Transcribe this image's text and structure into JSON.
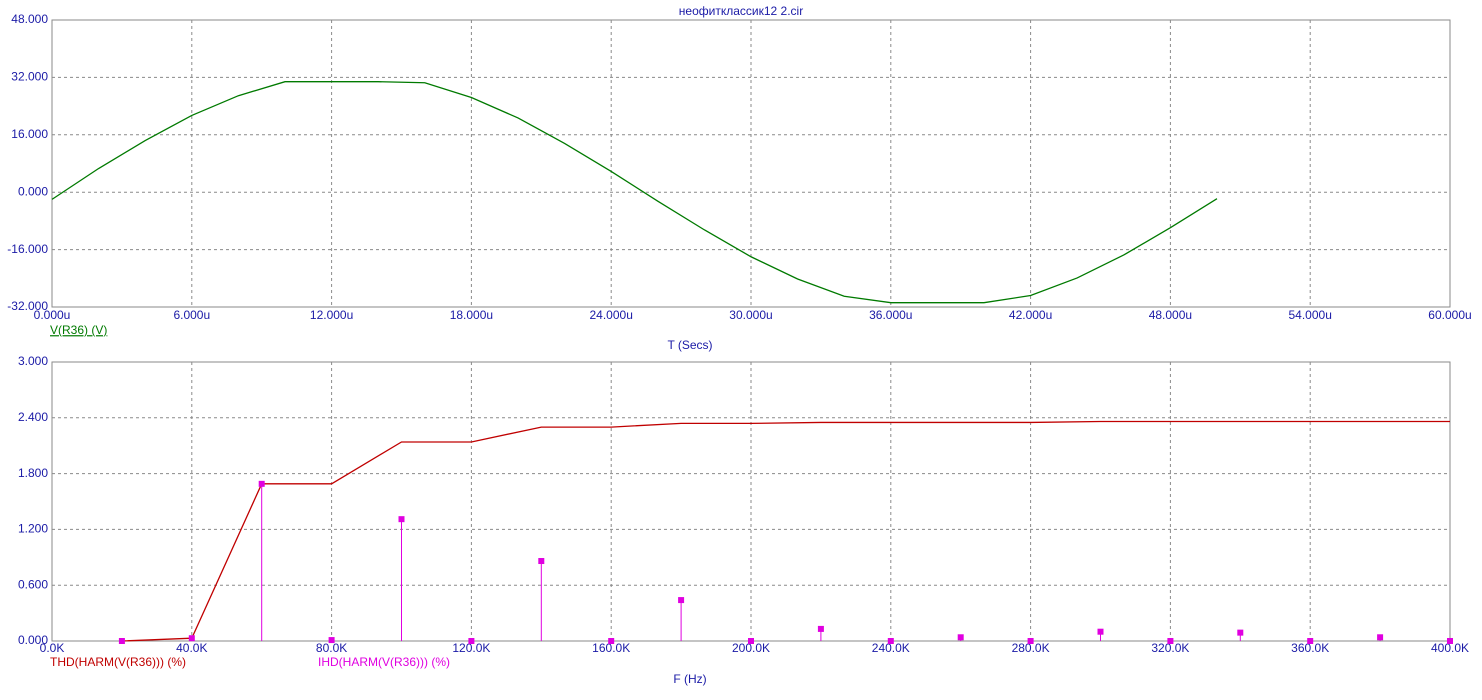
{
  "chart_data": [
    {
      "type": "line",
      "title": "неофитклассик12  2.cir",
      "x_label": "T (Secs)",
      "x": [
        0,
        2e-06,
        4e-06,
        6e-06,
        8e-06,
        1e-05,
        1.2e-05,
        1.4e-05,
        1.6e-05,
        1.8e-05,
        2e-05,
        2.2e-05,
        2.4e-05,
        2.6e-05,
        2.8e-05,
        3e-05,
        3.2e-05,
        3.4e-05,
        3.6e-05,
        3.8e-05,
        4e-05,
        4.2e-05,
        4.4e-05,
        4.6e-05,
        4.8e-05,
        5e-05
      ],
      "series": [
        {
          "name": "V(R36) (V)",
          "color": "#007a00",
          "style": "line",
          "values": [
            -2.0,
            6.6,
            14.4,
            21.4,
            26.9,
            30.8,
            30.8,
            30.8,
            30.5,
            26.4,
            20.7,
            13.6,
            5.8,
            -2.5,
            -10.5,
            -18.0,
            -24.2,
            -29.0,
            -30.8,
            -30.8,
            -30.8,
            -28.8,
            -23.9,
            -17.5,
            -9.9,
            -1.8
          ]
        }
      ],
      "xlim": [
        0,
        6e-05
      ],
      "xticks": [
        {
          "value": 0,
          "label": "0.000u"
        },
        {
          "value": 6e-06,
          "label": "6.000u"
        },
        {
          "value": 1.2e-05,
          "label": "12.000u"
        },
        {
          "value": 1.8e-05,
          "label": "18.000u"
        },
        {
          "value": 2.4e-05,
          "label": "24.000u"
        },
        {
          "value": 3e-05,
          "label": "30.000u"
        },
        {
          "value": 3.6e-05,
          "label": "36.000u"
        },
        {
          "value": 4.2e-05,
          "label": "42.000u"
        },
        {
          "value": 4.8e-05,
          "label": "48.000u"
        },
        {
          "value": 5.4e-05,
          "label": "54.000u"
        },
        {
          "value": 6e-05,
          "label": "60.000u"
        }
      ],
      "ylim": [
        -32,
        48
      ],
      "yticks": [
        {
          "value": -32,
          "label": "-32.000"
        },
        {
          "value": -16,
          "label": "-16.000"
        },
        {
          "value": 0,
          "label": "0.000"
        },
        {
          "value": 16,
          "label": "16.000"
        },
        {
          "value": 32,
          "label": "32.000"
        },
        {
          "value": 48,
          "label": "48.000"
        }
      ],
      "grid": true
    },
    {
      "type": "line",
      "x_label": "F (Hz)",
      "x": [
        20000,
        40000,
        60000,
        80000,
        100000,
        120000,
        140000,
        160000,
        180000,
        200000,
        220000,
        240000,
        260000,
        280000,
        300000,
        320000,
        340000,
        360000,
        380000,
        400000
      ],
      "series": [
        {
          "name": "THD(HARM(V(R36))) (%)",
          "color": "#c00000",
          "style": "line",
          "values": [
            0,
            0.03,
            1.69,
            1.69,
            2.14,
            2.14,
            2.3,
            2.3,
            2.34,
            2.34,
            2.35,
            2.35,
            2.35,
            2.35,
            2.36,
            2.36,
            2.36,
            2.36,
            2.36,
            2.36
          ]
        },
        {
          "name": "IHD(HARM(V(R36))) (%)",
          "color": "#e000e0",
          "style": "stem",
          "values": [
            0,
            0.03,
            1.69,
            0.01,
            1.31,
            0,
            0.86,
            0,
            0.44,
            0,
            0.13,
            0,
            0.04,
            0,
            0.1,
            0,
            0.09,
            0,
            0.04,
            0
          ]
        }
      ],
      "xlim": [
        0,
        400000
      ],
      "xticks": [
        {
          "value": 0,
          "label": "0.0K"
        },
        {
          "value": 40000,
          "label": "40.0K"
        },
        {
          "value": 80000,
          "label": "80.0K"
        },
        {
          "value": 120000,
          "label": "120.0K"
        },
        {
          "value": 160000,
          "label": "160.0K"
        },
        {
          "value": 200000,
          "label": "200.0K"
        },
        {
          "value": 240000,
          "label": "240.0K"
        },
        {
          "value": 280000,
          "label": "280.0K"
        },
        {
          "value": 320000,
          "label": "320.0K"
        },
        {
          "value": 360000,
          "label": "360.0K"
        },
        {
          "value": 400000,
          "label": "400.0K"
        }
      ],
      "ylim": [
        0,
        3
      ],
      "yticks": [
        {
          "value": 0,
          "label": "0.000"
        },
        {
          "value": 0.6,
          "label": "0.600"
        },
        {
          "value": 1.2,
          "label": "1.200"
        },
        {
          "value": 1.8,
          "label": "1.800"
        },
        {
          "value": 2.4,
          "label": "2.400"
        },
        {
          "value": 3,
          "label": "3.000"
        }
      ],
      "grid": true
    }
  ]
}
